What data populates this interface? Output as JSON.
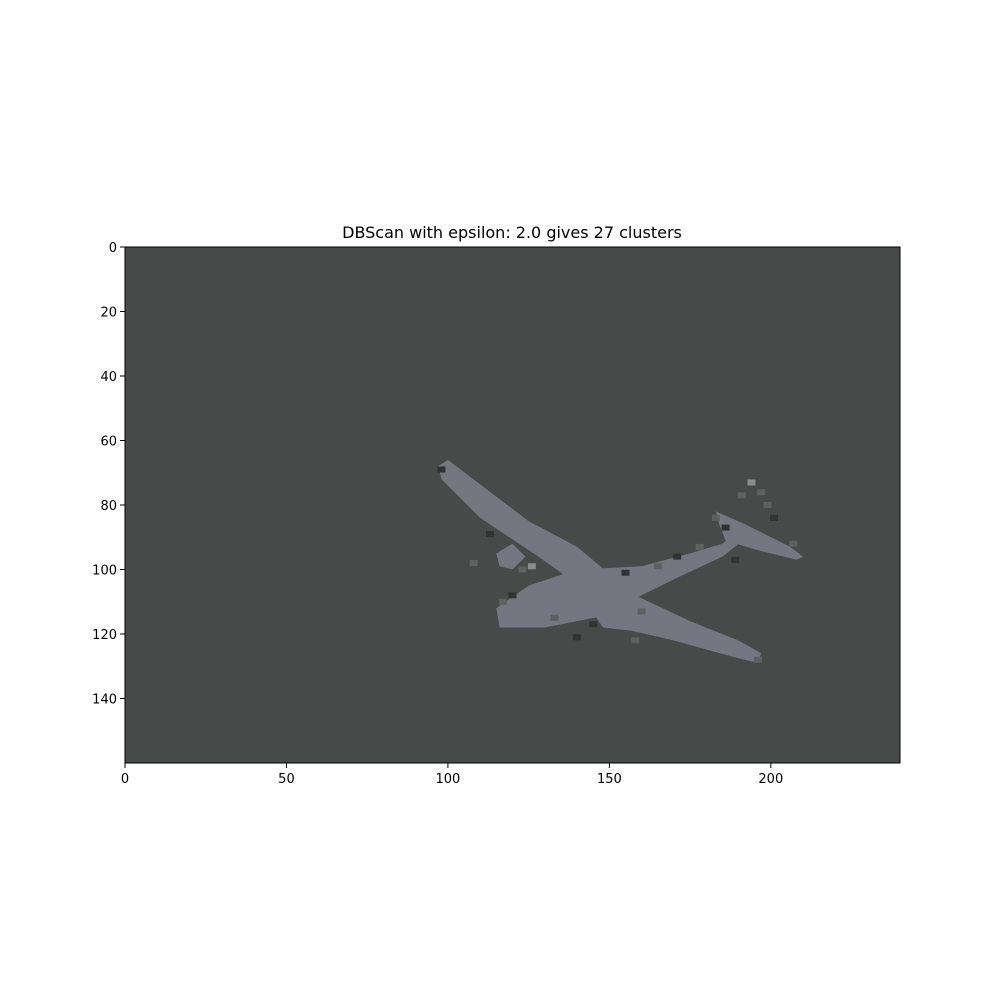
{
  "chart_data": {
    "type": "heatmap",
    "title": "DBScan with epsilon: 2.0 gives 27 clusters",
    "xlabel": "",
    "ylabel": "",
    "xlim": [
      0,
      240
    ],
    "ylim": [
      160,
      0
    ],
    "x_ticks": [
      0,
      50,
      100,
      150,
      200
    ],
    "y_ticks": [
      0,
      20,
      40,
      60,
      80,
      100,
      120,
      140
    ],
    "grid": false,
    "colors": {
      "background_cluster": "#464b49",
      "aircraft_cluster": "#747782",
      "minor_cluster_dark": "#2f3331",
      "minor_cluster_mid": "#5d6260",
      "minor_cluster_light": "#8a8f8c"
    }
  }
}
